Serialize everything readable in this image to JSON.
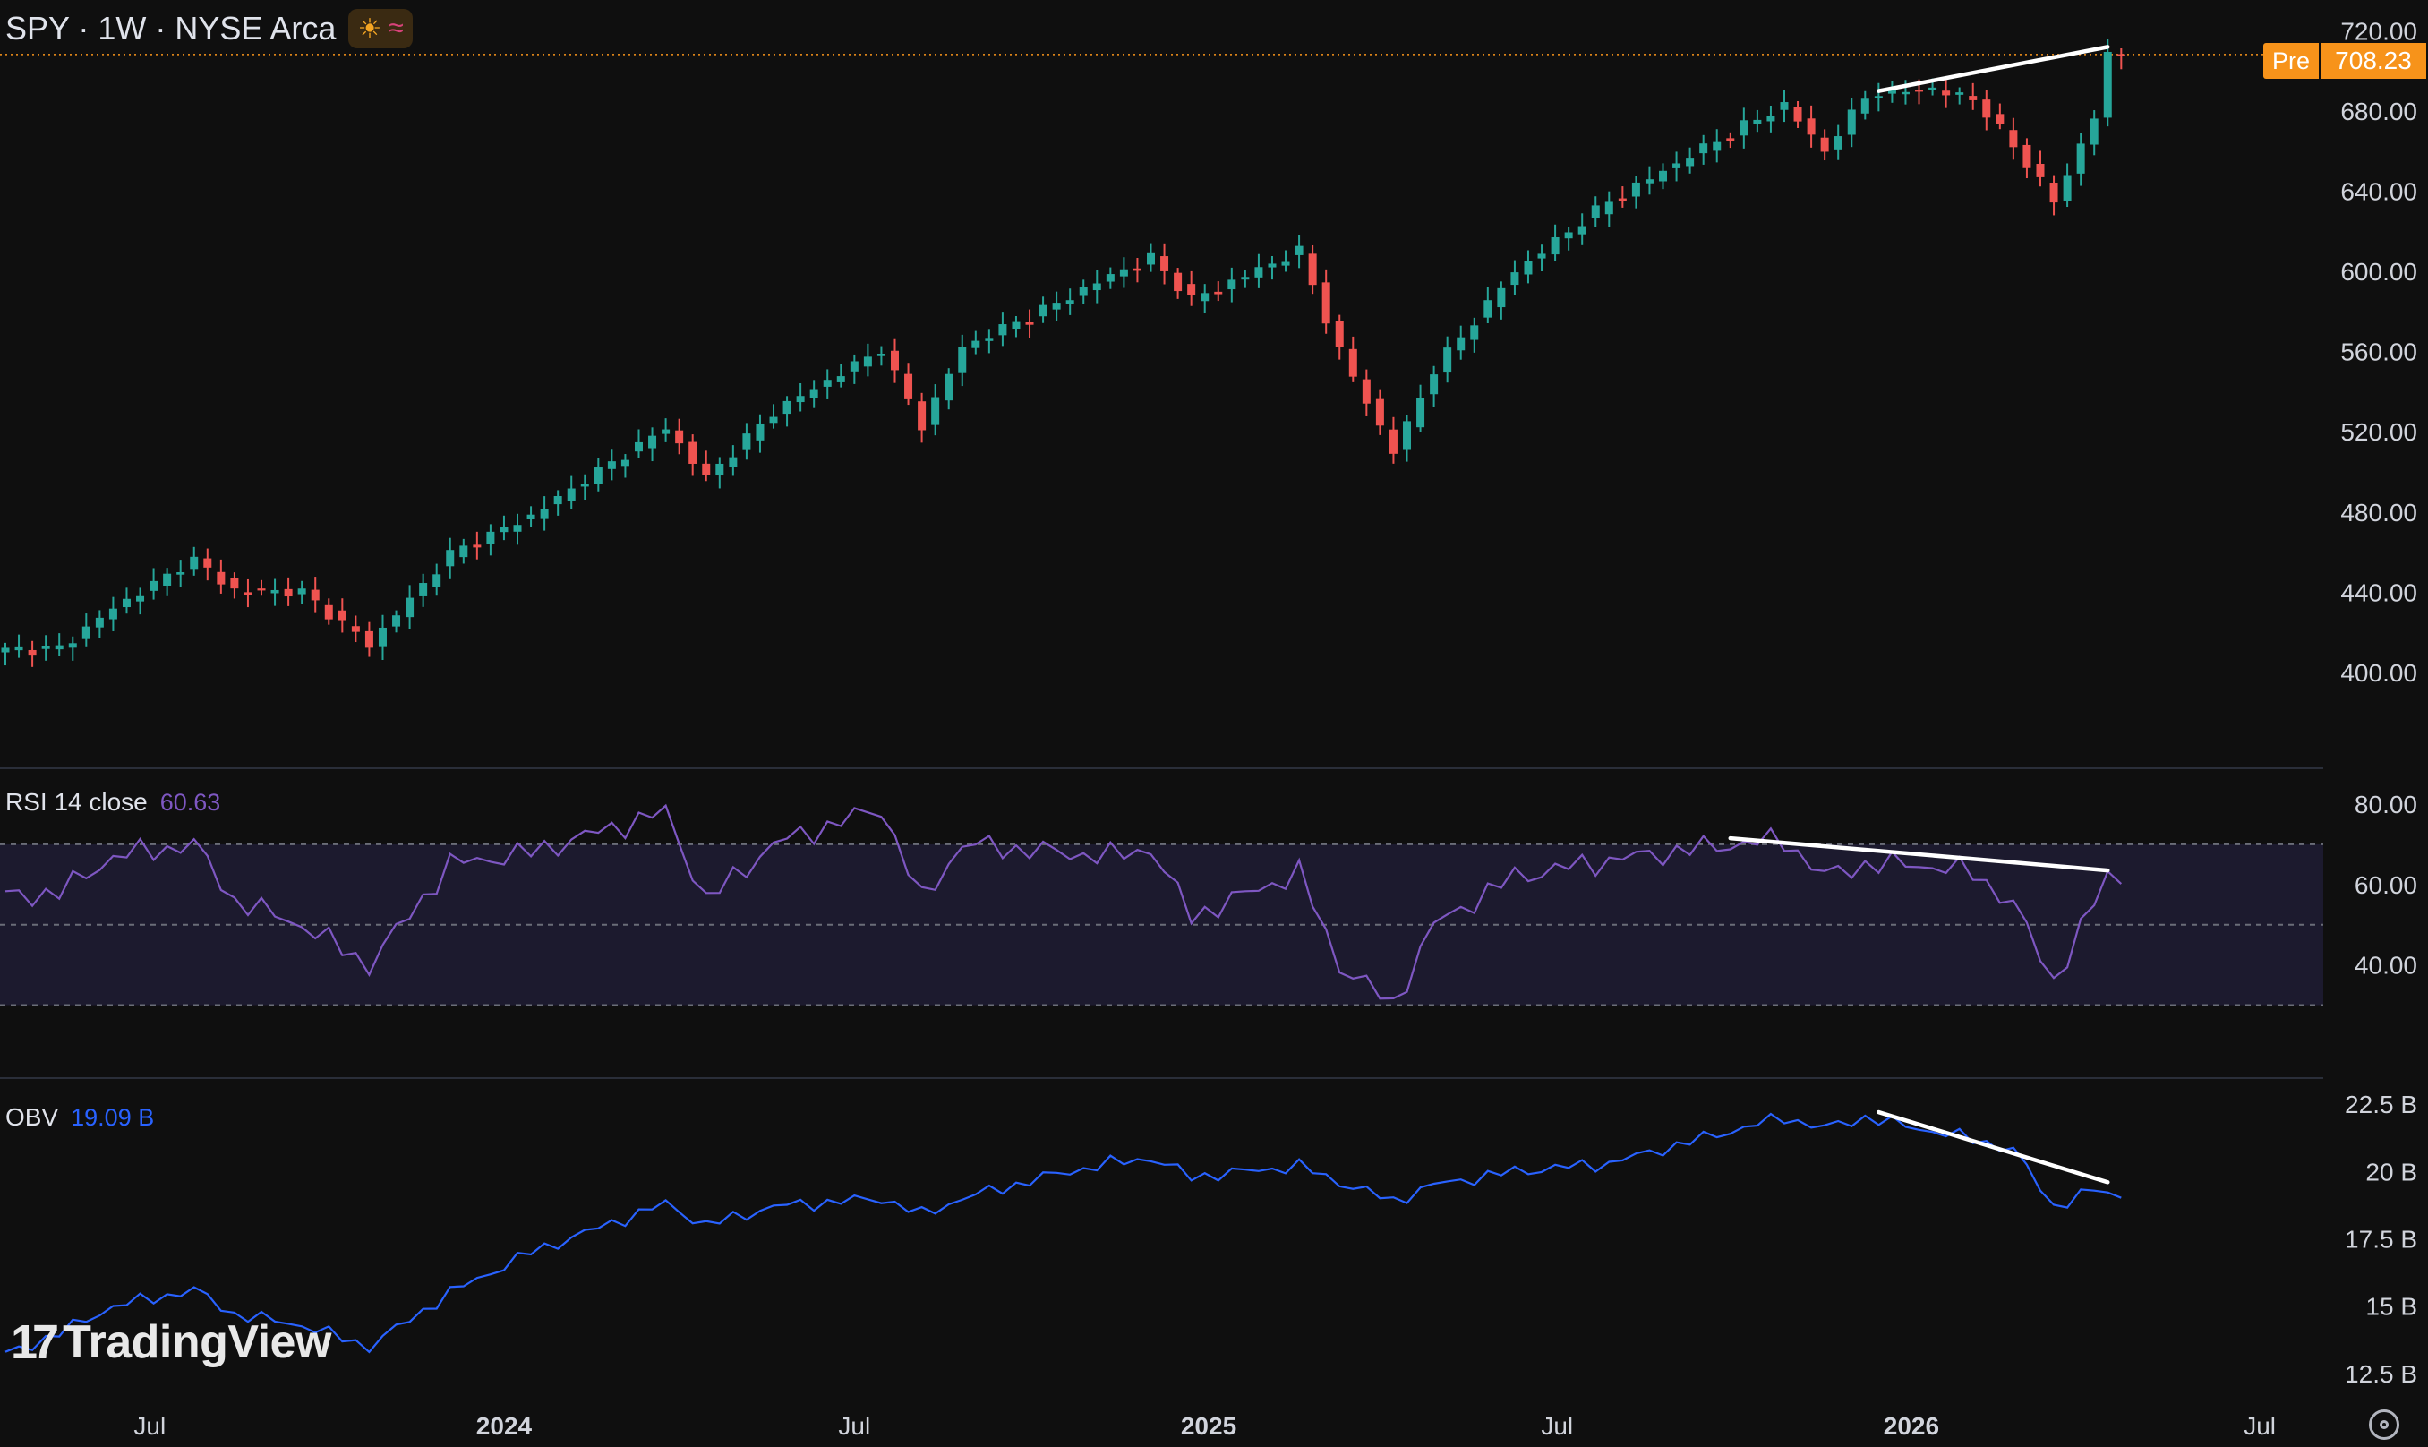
{
  "header": {
    "symbol": "SPY · 1W · NYSE Arca",
    "icons": [
      "sun-icon",
      "wave-icon"
    ]
  },
  "price_tag": {
    "session": "Pre",
    "value": "708.23"
  },
  "rsi": {
    "label": "RSI 14 close",
    "value": "60.63"
  },
  "obv": {
    "label": "OBV",
    "value": "19.09 B"
  },
  "logo": {
    "text": "TradingView"
  },
  "colors": {
    "background": "#0f0f0f",
    "up": "#26a69a",
    "down": "#ef5350",
    "rsi_line": "#7e57c2",
    "rsi_band": "#1c1a2e",
    "obv_line": "#2962ff",
    "price_tag": "#f7931a",
    "trendline": "#ffffff"
  },
  "chart_data": [
    {
      "type": "candlestick",
      "pane": "price",
      "interval": "1W",
      "y_ticks": [
        "400.00",
        "440.00",
        "480.00",
        "520.00",
        "560.00",
        "600.00",
        "640.00",
        "680.00",
        "720.00"
      ],
      "ylim": [
        387,
        722
      ],
      "x_ticks": [
        "Jul",
        "2024",
        "Jul",
        "2025",
        "Jul",
        "2026",
        "Jul"
      ],
      "x_tick_dates": [
        "2023-07-01",
        "2024-01-01",
        "2024-07-01",
        "2025-01-01",
        "2025-07-01",
        "2026-01-01",
        "2026-07-01"
      ],
      "current_price": 708.23,
      "anchors": [
        [
          "2023-04-17",
          411
        ],
        [
          "2023-05-15",
          412
        ],
        [
          "2023-06-12",
          432
        ],
        [
          "2023-07-24",
          456
        ],
        [
          "2023-08-14",
          441
        ],
        [
          "2023-09-18",
          440
        ],
        [
          "2023-10-23",
          414
        ],
        [
          "2023-12-04",
          459
        ],
        [
          "2024-01-15",
          478
        ],
        [
          "2024-03-25",
          522
        ],
        [
          "2024-04-15",
          497
        ],
        [
          "2024-05-20",
          530
        ],
        [
          "2024-07-15",
          561
        ],
        [
          "2024-08-05",
          523
        ],
        [
          "2024-08-26",
          562
        ],
        [
          "2024-10-14",
          584
        ],
        [
          "2024-11-11",
          598
        ],
        [
          "2024-12-02",
          607
        ],
        [
          "2024-12-23",
          586
        ],
        [
          "2025-02-17",
          610
        ],
        [
          "2025-03-10",
          560
        ],
        [
          "2025-04-07",
          510
        ],
        [
          "2025-04-28",
          551
        ],
        [
          "2025-06-09",
          600
        ],
        [
          "2025-07-28",
          635
        ],
        [
          "2025-09-29",
          669
        ],
        [
          "2025-10-27",
          683
        ],
        [
          "2025-11-17",
          660
        ],
        [
          "2025-12-08",
          687
        ],
        [
          "2026-01-05",
          691
        ],
        [
          "2026-02-02",
          686
        ],
        [
          "2026-02-23",
          663
        ],
        [
          "2026-03-16",
          635
        ],
        [
          "2026-04-06",
          677
        ],
        [
          "2026-04-13",
          708
        ],
        [
          "2026-04-20",
          708.23
        ]
      ],
      "trendline": {
        "from": [
          "2025-12-15",
          690
        ],
        "to": [
          "2026-04-13",
          712
        ]
      }
    },
    {
      "type": "line",
      "pane": "rsi",
      "series": [
        {
          "name": "RSI 14 close"
        }
      ],
      "y_ticks": [
        "40.00",
        "60.00",
        "80.00"
      ],
      "ylim": [
        25,
        84
      ],
      "bands": [
        70,
        50,
        30
      ],
      "anchors": [
        [
          "2023-04-17",
          57
        ],
        [
          "2023-05-15",
          58
        ],
        [
          "2023-06-12",
          67
        ],
        [
          "2023-07-24",
          70
        ],
        [
          "2023-08-14",
          56
        ],
        [
          "2023-09-18",
          50
        ],
        [
          "2023-10-23",
          40
        ],
        [
          "2023-12-04",
          65
        ],
        [
          "2024-01-15",
          68
        ],
        [
          "2024-03-25",
          78
        ],
        [
          "2024-04-15",
          56
        ],
        [
          "2024-05-20",
          70
        ],
        [
          "2024-07-15",
          79
        ],
        [
          "2024-08-05",
          56
        ],
        [
          "2024-08-26",
          70
        ],
        [
          "2024-10-14",
          68
        ],
        [
          "2024-11-11",
          67
        ],
        [
          "2024-12-02",
          69
        ],
        [
          "2024-12-23",
          52
        ],
        [
          "2025-02-17",
          63
        ],
        [
          "2025-03-10",
          40
        ],
        [
          "2025-04-07",
          30
        ],
        [
          "2025-04-28",
          50
        ],
        [
          "2025-06-09",
          62
        ],
        [
          "2025-07-28",
          66
        ],
        [
          "2025-09-29",
          70
        ],
        [
          "2025-10-27",
          71
        ],
        [
          "2025-11-17",
          62
        ],
        [
          "2025-12-08",
          65
        ],
        [
          "2026-01-05",
          65
        ],
        [
          "2026-02-02",
          63
        ],
        [
          "2026-02-23",
          55
        ],
        [
          "2026-03-16",
          36
        ],
        [
          "2026-04-06",
          55
        ],
        [
          "2026-04-13",
          63
        ],
        [
          "2026-04-20",
          61
        ]
      ],
      "trendline": {
        "from": [
          "2025-09-29",
          71.5
        ],
        "to": [
          "2026-04-13",
          63.5
        ]
      }
    },
    {
      "type": "line",
      "pane": "obv",
      "series": [
        {
          "name": "OBV"
        }
      ],
      "y_ticks": [
        "12.5 B",
        "15 B",
        "17.5 B",
        "20 B",
        "22.5 B"
      ],
      "ylim": [
        12.3,
        22.6
      ],
      "anchors": [
        [
          "2023-04-17",
          13.2
        ],
        [
          "2023-05-15",
          14.0
        ],
        [
          "2023-06-12",
          15.0
        ],
        [
          "2023-07-24",
          15.6
        ],
        [
          "2023-08-14",
          14.7
        ],
        [
          "2023-09-18",
          14.3
        ],
        [
          "2023-10-23",
          13.5
        ],
        [
          "2023-12-04",
          15.5
        ],
        [
          "2024-01-15",
          17.0
        ],
        [
          "2024-03-25",
          18.8
        ],
        [
          "2024-04-15",
          18.0
        ],
        [
          "2024-05-20",
          18.7
        ],
        [
          "2024-07-15",
          19.0
        ],
        [
          "2024-08-05",
          18.4
        ],
        [
          "2024-08-26",
          19.0
        ],
        [
          "2024-10-14",
          19.9
        ],
        [
          "2024-11-11",
          20.3
        ],
        [
          "2024-12-02",
          20.5
        ],
        [
          "2024-12-23",
          19.8
        ],
        [
          "2025-02-17",
          20.2
        ],
        [
          "2025-03-10",
          19.6
        ],
        [
          "2025-04-07",
          18.9
        ],
        [
          "2025-04-28",
          19.5
        ],
        [
          "2025-06-09",
          20.0
        ],
        [
          "2025-07-28",
          20.3
        ],
        [
          "2025-09-29",
          21.5
        ],
        [
          "2025-10-27",
          22.0
        ],
        [
          "2025-11-17",
          21.6
        ],
        [
          "2025-12-08",
          22.0
        ],
        [
          "2026-01-05",
          21.6
        ],
        [
          "2026-02-02",
          21.2
        ],
        [
          "2026-02-23",
          20.8
        ],
        [
          "2026-03-16",
          18.7
        ],
        [
          "2026-04-06",
          19.3
        ],
        [
          "2026-04-13",
          19.2
        ],
        [
          "2026-04-20",
          19.09
        ]
      ],
      "trendline": {
        "from": [
          "2025-12-15",
          22.2
        ],
        "to": [
          "2026-04-13",
          19.6
        ]
      }
    }
  ]
}
